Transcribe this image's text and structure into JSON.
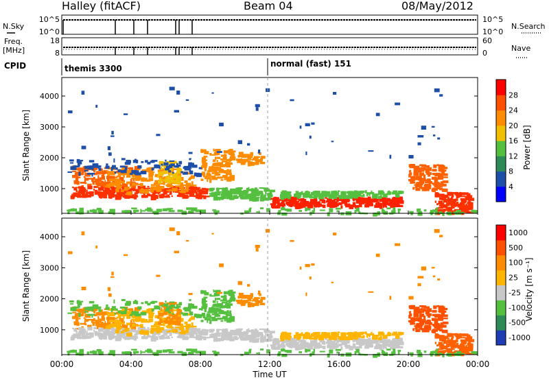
{
  "header": {
    "title": "Halley (fitACF)",
    "beam": "Beam 04",
    "date": "08/May/2012"
  },
  "top_panels": {
    "nsky": {
      "label": "N.Sky",
      "ticks": [
        "10^5",
        "10^0"
      ]
    },
    "nsearch": {
      "label": "N.Search",
      "ticks": [
        "10^5",
        "10^0"
      ]
    },
    "freq": {
      "label": "Freq.",
      "unit": "[MHz]",
      "ticks": [
        "18",
        "8"
      ]
    },
    "nave": {
      "label": "Nave",
      "ticks": [
        "60",
        "0"
      ]
    },
    "cpid": {
      "label": "CPID",
      "modes": [
        {
          "text": "themis 3300",
          "start_hour": 0
        },
        {
          "text": "normal (fast) 151",
          "start_hour": 12
        }
      ]
    }
  },
  "chart_data": [
    {
      "type": "heatmap",
      "title": "",
      "xlabel": "",
      "ylabel": "Slant Range [km]",
      "xlim": [
        0,
        24
      ],
      "ylim": [
        200,
        4600
      ],
      "yticks": [
        1000,
        2000,
        3000,
        4000
      ],
      "colorbar": {
        "label": "Power [dB]",
        "ticks": [
          "4",
          "8",
          "12",
          "16",
          "20",
          "24",
          "28"
        ],
        "colors": [
          "#0000ff",
          "#1e4fa8",
          "#2e8b57",
          "#55c040",
          "#f0c000",
          "#ff8c00",
          "#ff5000",
          "#ff0000"
        ]
      }
    },
    {
      "type": "heatmap",
      "title": "",
      "xlabel": "Time UT",
      "ylabel": "Slant Range [km]",
      "xlim": [
        0,
        24
      ],
      "ylim": [
        200,
        4600
      ],
      "xticks": [
        "00:00",
        "04:00",
        "08:00",
        "12:00",
        "16:00",
        "20:00",
        "00:00"
      ],
      "yticks": [
        1000,
        2000,
        3000,
        4000
      ],
      "colorbar": {
        "label": "Velocity [m s⁻¹]",
        "ticks": [
          "1000",
          "500",
          "100",
          "25",
          "-25",
          "-100",
          "-500",
          "-1000"
        ],
        "colors": [
          "#1e3cb4",
          "#2e8b57",
          "#55c040",
          "#c8c8c8",
          "#ffb400",
          "#ff8c00",
          "#ff5000",
          "#ff0000"
        ]
      }
    }
  ],
  "echo_regions": [
    {
      "t0": 0.5,
      "t1": 4.2,
      "r0": 1050,
      "r1": 1750,
      "p": "#ff6000",
      "v": "#ff8c00",
      "n": 150
    },
    {
      "t0": 0.5,
      "t1": 8.5,
      "r0": 750,
      "r1": 1100,
      "p": "#ff3000",
      "v": "#c8c8c8",
      "n": 260
    },
    {
      "t0": 2.5,
      "t1": 7.5,
      "r0": 900,
      "r1": 1700,
      "p": "#ff8c00",
      "v": "#ffb400",
      "n": 180
    },
    {
      "t0": 5.5,
      "t1": 6.8,
      "r0": 1200,
      "r1": 1900,
      "p": "#f0c000",
      "v": "#ff8c00",
      "n": 60
    },
    {
      "t0": 8.0,
      "t1": 9.8,
      "r0": 1300,
      "r1": 2300,
      "p": "#ff8c00",
      "v": "#55c040",
      "n": 110
    },
    {
      "t0": 8.5,
      "t1": 12.0,
      "r0": 700,
      "r1": 1050,
      "p": "#55c040",
      "v": "#c8c8c8",
      "n": 150
    },
    {
      "t0": 10.0,
      "t1": 11.5,
      "r0": 1850,
      "r1": 2200,
      "p": "#ff8c00",
      "v": "#ff8c00",
      "n": 50
    },
    {
      "t0": 12.0,
      "t1": 19.5,
      "r0": 450,
      "r1": 750,
      "p": "#ff2000",
      "v": "#c8c8c8",
      "n": 300
    },
    {
      "t0": 12.5,
      "t1": 19.5,
      "r0": 750,
      "r1": 950,
      "p": "#55c040",
      "v": "#ffb400",
      "n": 150
    },
    {
      "t0": 20.0,
      "t1": 22.0,
      "r0": 1000,
      "r1": 1800,
      "p": "#ff6000",
      "v": "#ff5000",
      "n": 130
    },
    {
      "t0": 21.5,
      "t1": 23.5,
      "r0": 250,
      "r1": 900,
      "p": "#ff3000",
      "v": "#ff6000",
      "n": 150
    },
    {
      "t0": 0.0,
      "t1": 24.0,
      "r0": 220,
      "r1": 400,
      "p": "#55c040",
      "v": "#55c040",
      "n": 120
    },
    {
      "t0": 0.3,
      "t1": 8.0,
      "r0": 1500,
      "r1": 2000,
      "p": "#1e4fa8",
      "v": "#55c040",
      "n": 100
    },
    {
      "t0": 0.0,
      "t1": 24.0,
      "r0": 2000,
      "r1": 4300,
      "p": "#1e4fa8",
      "v": "#ff8c00",
      "n": 45
    }
  ]
}
